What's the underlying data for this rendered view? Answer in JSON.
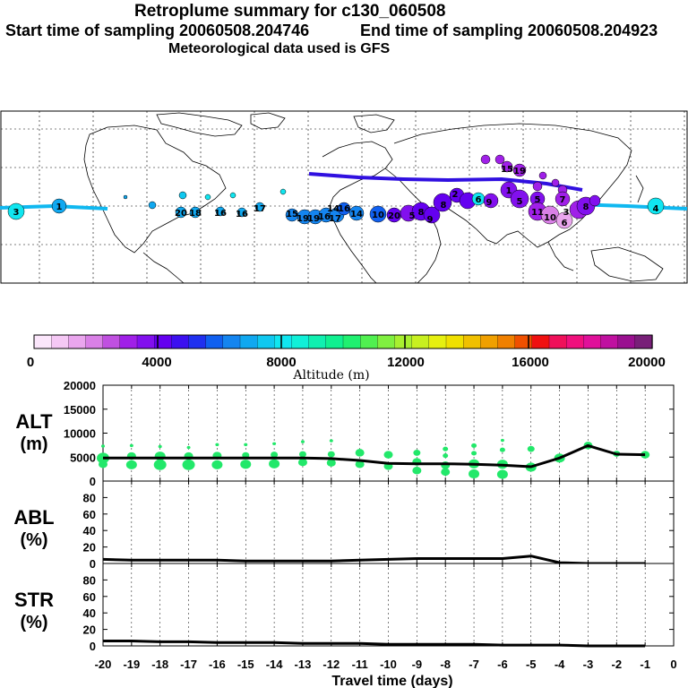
{
  "header": {
    "title": "Retroplume summary for c130_060508",
    "start_sampling": "Start time of sampling 20060508.204746",
    "end_sampling": "End time of sampling 20060508.204923",
    "met_data": "Meteorological data used is GFS"
  },
  "colorbar": {
    "label": "Altitude (m)",
    "ticks": [
      "0",
      "4000",
      "8000",
      "12000",
      "16000",
      "20000"
    ],
    "colors": [
      "#fbe6fb",
      "#f5c8f5",
      "#eaa6ee",
      "#d980e6",
      "#c050e0",
      "#a020e8",
      "#8210ee",
      "#6400f0",
      "#3c10f0",
      "#2030f0",
      "#1060f0",
      "#1485f0",
      "#10a8f0",
      "#10c8f0",
      "#10e6f0",
      "#10f0d8",
      "#10f0b0",
      "#10f090",
      "#20f070",
      "#50f050",
      "#80f040",
      "#a8f030",
      "#c8f020",
      "#e6f010",
      "#f0e000",
      "#f0c000",
      "#f0a000",
      "#f08000",
      "#f05000",
      "#f01010",
      "#f0105a",
      "#f0107d",
      "#e0109a",
      "#c010a0",
      "#9a1090",
      "#782078"
    ]
  },
  "map": {
    "labels": [
      {
        "t": "3",
        "x": 18,
        "y": 236
      },
      {
        "t": "1",
        "x": 66,
        "y": 230
      },
      {
        "t": "4",
        "x": 732,
        "y": 232
      },
      {
        "t": "3",
        "x": 632,
        "y": 236
      },
      {
        "t": "2",
        "x": 508,
        "y": 216
      },
      {
        "t": "20",
        "x": 202,
        "y": 237
      },
      {
        "t": "18",
        "x": 218,
        "y": 237
      },
      {
        "t": "16",
        "x": 246,
        "y": 237
      },
      {
        "t": "16",
        "x": 270,
        "y": 238
      },
      {
        "t": "17",
        "x": 290,
        "y": 232
      },
      {
        "t": "15",
        "x": 326,
        "y": 238
      },
      {
        "t": "19",
        "x": 338,
        "y": 243
      },
      {
        "t": "19",
        "x": 350,
        "y": 243
      },
      {
        "t": "16",
        "x": 362,
        "y": 241
      },
      {
        "t": "17",
        "x": 374,
        "y": 243
      },
      {
        "t": "14",
        "x": 372,
        "y": 232
      },
      {
        "t": "16",
        "x": 384,
        "y": 232
      },
      {
        "t": "14",
        "x": 398,
        "y": 238
      },
      {
        "t": "10",
        "x": 422,
        "y": 239
      },
      {
        "t": "20",
        "x": 440,
        "y": 240
      },
      {
        "t": "5",
        "x": 460,
        "y": 240
      },
      {
        "t": "8",
        "x": 470,
        "y": 236
      },
      {
        "t": "9",
        "x": 480,
        "y": 244
      },
      {
        "t": "8",
        "x": 495,
        "y": 228
      },
      {
        "t": "6",
        "x": 534,
        "y": 222
      },
      {
        "t": "9",
        "x": 546,
        "y": 225
      },
      {
        "t": "1",
        "x": 568,
        "y": 212
      },
      {
        "t": "5",
        "x": 580,
        "y": 224
      },
      {
        "t": "15",
        "x": 566,
        "y": 188
      },
      {
        "t": "19",
        "x": 580,
        "y": 190
      },
      {
        "t": "5",
        "x": 600,
        "y": 222
      },
      {
        "t": "11",
        "x": 600,
        "y": 236
      },
      {
        "t": "10",
        "x": 614,
        "y": 242
      },
      {
        "t": "7",
        "x": 628,
        "y": 222
      },
      {
        "t": "6",
        "x": 630,
        "y": 248
      },
      {
        "t": "8",
        "x": 654,
        "y": 230
      }
    ]
  },
  "chart_data": [
    {
      "type": "line+scatter",
      "panel": "ALT",
      "ylabel_top": "ALT",
      "ylabel_unit": "(m)",
      "ylim": [
        0,
        20000
      ],
      "yticks": [
        0,
        5000,
        10000,
        15000,
        20000
      ],
      "x": [
        -20,
        -19,
        -18,
        -17,
        -16,
        -15,
        -14,
        -13,
        -12,
        -11,
        -10,
        -9,
        -8,
        -7,
        -6,
        -5,
        -4,
        -3,
        -2,
        -1
      ],
      "line": [
        4800,
        4800,
        4800,
        4800,
        4800,
        4800,
        4800,
        4800,
        4700,
        4300,
        3700,
        3600,
        3600,
        3500,
        3300,
        3000,
        4800,
        7400,
        5600,
        5500
      ],
      "points": [
        {
          "x": -20,
          "y": 3500,
          "s": 5
        },
        {
          "x": -20,
          "y": 4800,
          "s": 7
        },
        {
          "x": -20,
          "y": 7300,
          "s": 2
        },
        {
          "x": -19,
          "y": 3400,
          "s": 6
        },
        {
          "x": -19,
          "y": 5200,
          "s": 5
        },
        {
          "x": -19,
          "y": 7400,
          "s": 2
        },
        {
          "x": -18,
          "y": 3400,
          "s": 7
        },
        {
          "x": -18,
          "y": 5200,
          "s": 6
        },
        {
          "x": -18,
          "y": 7200,
          "s": 2
        },
        {
          "x": -17,
          "y": 3400,
          "s": 7
        },
        {
          "x": -17,
          "y": 5200,
          "s": 5
        },
        {
          "x": -17,
          "y": 7000,
          "s": 2
        },
        {
          "x": -16,
          "y": 3400,
          "s": 6
        },
        {
          "x": -16,
          "y": 5300,
          "s": 5
        },
        {
          "x": -16,
          "y": 7600,
          "s": 2
        },
        {
          "x": -15,
          "y": 3500,
          "s": 6
        },
        {
          "x": -15,
          "y": 5400,
          "s": 4
        },
        {
          "x": -15,
          "y": 7600,
          "s": 2
        },
        {
          "x": -14,
          "y": 3600,
          "s": 6
        },
        {
          "x": -14,
          "y": 5500,
          "s": 4
        },
        {
          "x": -14,
          "y": 7800,
          "s": 2
        },
        {
          "x": -13,
          "y": 3900,
          "s": 5
        },
        {
          "x": -13,
          "y": 5600,
          "s": 4
        },
        {
          "x": -13,
          "y": 8200,
          "s": 2
        },
        {
          "x": -12,
          "y": 3800,
          "s": 5
        },
        {
          "x": -12,
          "y": 5600,
          "s": 4
        },
        {
          "x": -12,
          "y": 8400,
          "s": 2
        },
        {
          "x": -11,
          "y": 3500,
          "s": 5
        },
        {
          "x": -11,
          "y": 5900,
          "s": 5
        },
        {
          "x": -10,
          "y": 3100,
          "s": 5
        },
        {
          "x": -10,
          "y": 5500,
          "s": 5
        },
        {
          "x": -9,
          "y": 2200,
          "s": 5
        },
        {
          "x": -9,
          "y": 4000,
          "s": 5
        },
        {
          "x": -9,
          "y": 5900,
          "s": 4
        },
        {
          "x": -8,
          "y": 1900,
          "s": 5
        },
        {
          "x": -8,
          "y": 3300,
          "s": 5
        },
        {
          "x": -8,
          "y": 5300,
          "s": 3
        },
        {
          "x": -8,
          "y": 6700,
          "s": 3
        },
        {
          "x": -7,
          "y": 1500,
          "s": 6
        },
        {
          "x": -7,
          "y": 3600,
          "s": 6
        },
        {
          "x": -7,
          "y": 5800,
          "s": 3
        },
        {
          "x": -7,
          "y": 7400,
          "s": 3
        },
        {
          "x": -6,
          "y": 1400,
          "s": 6
        },
        {
          "x": -6,
          "y": 3500,
          "s": 6
        },
        {
          "x": -6,
          "y": 6500,
          "s": 3
        },
        {
          "x": -6,
          "y": 8500,
          "s": 2
        },
        {
          "x": -5,
          "y": 2900,
          "s": 6
        },
        {
          "x": -5,
          "y": 6700,
          "s": 4
        },
        {
          "x": -4,
          "y": 4800,
          "s": 6
        },
        {
          "x": -3,
          "y": 7400,
          "s": 5
        },
        {
          "x": -2,
          "y": 5700,
          "s": 4
        },
        {
          "x": -1,
          "y": 5500,
          "s": 5
        }
      ],
      "point_color": "#22e86a"
    },
    {
      "type": "line",
      "panel": "ABL",
      "ylabel_top": "ABL",
      "ylabel_unit": "(%)",
      "ylim": [
        0,
        100
      ],
      "yticks": [
        0,
        20,
        40,
        60,
        80
      ],
      "x": [
        -20,
        -19,
        -18,
        -17,
        -16,
        -15,
        -14,
        -13,
        -12,
        -11,
        -10,
        -9,
        -8,
        -7,
        -6,
        -5,
        -4,
        -3,
        -2,
        -1
      ],
      "values": [
        5,
        4,
        4,
        4,
        4,
        3,
        3,
        3,
        3,
        4,
        5,
        6,
        6,
        6,
        6,
        9,
        1,
        0,
        0,
        0
      ]
    },
    {
      "type": "line",
      "panel": "STR",
      "ylabel_top": "STR",
      "ylabel_unit": "(%)",
      "ylim": [
        0,
        100
      ],
      "yticks": [
        0,
        20,
        40,
        60,
        80
      ],
      "x": [
        -20,
        -19,
        -18,
        -17,
        -16,
        -15,
        -14,
        -13,
        -12,
        -11,
        -10,
        -9,
        -8,
        -7,
        -6,
        -5,
        -4,
        -3,
        -2,
        -1
      ],
      "values": [
        6,
        6,
        5,
        5,
        4,
        4,
        4,
        3,
        3,
        3,
        2,
        2,
        2,
        2,
        1,
        1,
        1,
        0,
        0,
        0
      ]
    }
  ],
  "xaxis": {
    "label": "Travel time (days)",
    "ticks": [
      "-20",
      "-19",
      "-18",
      "-17",
      "-16",
      "-15",
      "-14",
      "-13",
      "-12",
      "-11",
      "-10",
      "-9",
      "-8",
      "-7",
      "-6",
      "-5",
      "-4",
      "-3",
      "-2",
      "-1",
      "0"
    ]
  }
}
